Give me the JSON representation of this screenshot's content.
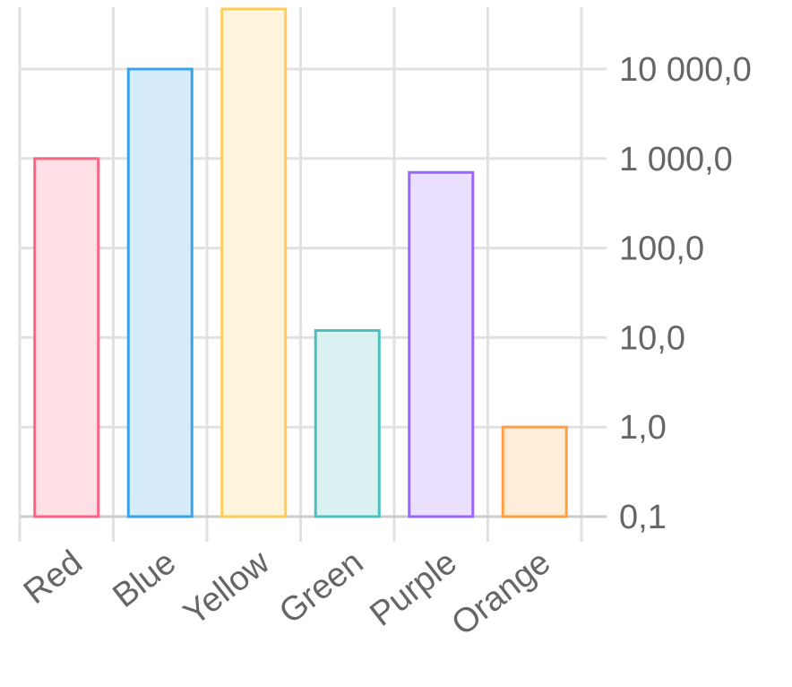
{
  "chart_data": {
    "type": "bar",
    "scale": "log",
    "categories": [
      "Red",
      "Blue",
      "Yellow",
      "Green",
      "Purple",
      "Orange"
    ],
    "values": [
      1000,
      10000,
      50000,
      12,
      700,
      1
    ],
    "y_axis_position": "right",
    "y_ticks": [
      0.1,
      1,
      10,
      100,
      1000,
      10000
    ],
    "y_tick_labels": [
      "0,1",
      "1,0",
      "10,0",
      "100,0",
      "1 000,0",
      "10 000,0"
    ],
    "grid": true,
    "colors": {
      "border": [
        "#ff6384",
        "#36a2eb",
        "#ffcd56",
        "#4bc0c0",
        "#9966ff",
        "#ff9f40"
      ],
      "fill": [
        "#ffe0e6",
        "#d7ecfb",
        "#fff5dd",
        "#dbf2f2",
        "#ebe0ff",
        "#ffecd9"
      ]
    }
  }
}
